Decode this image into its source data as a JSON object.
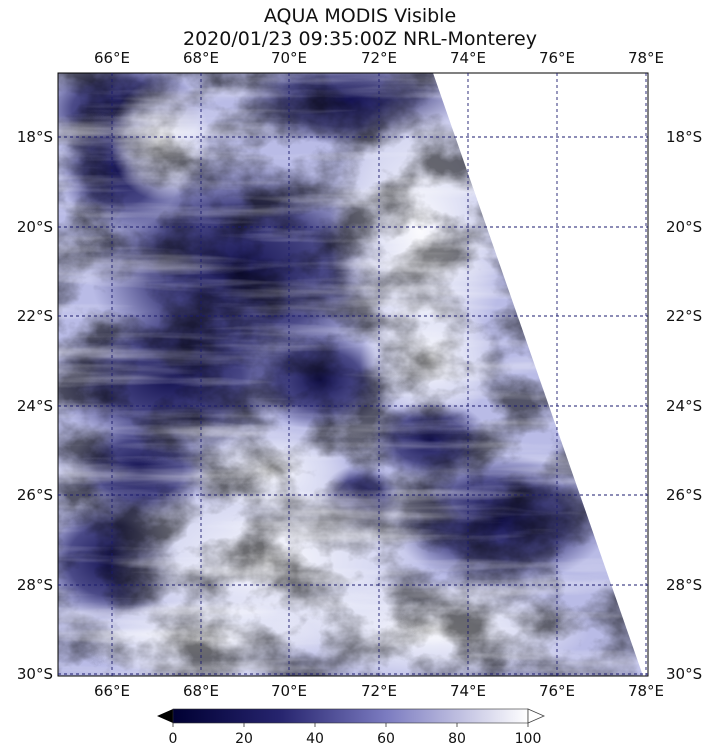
{
  "header": {
    "title_line1": "AQUA MODIS Visible",
    "title_line2": "2020/01/23 09:35:00Z NRL-Monterey"
  },
  "map": {
    "lon_ticks": [
      "66°E",
      "68°E",
      "70°E",
      "72°E",
      "74°E",
      "76°E",
      "78°E"
    ],
    "lat_ticks": [
      "18°S",
      "20°S",
      "22°S",
      "24°S",
      "26°S",
      "28°S",
      "30°S"
    ],
    "gridline_color": "#1a1a6e"
  },
  "colorbar": {
    "ticks": [
      "0",
      "20",
      "40",
      "60",
      "80",
      "100"
    ],
    "color_low": "#000033",
    "color_mid": "#7b7bc0",
    "color_high": "#ffffff"
  }
}
